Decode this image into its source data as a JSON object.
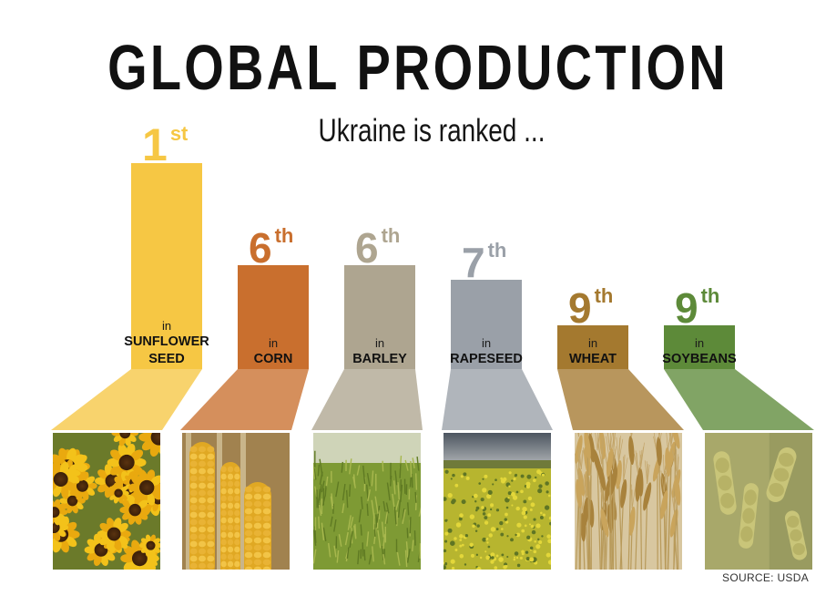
{
  "title": "GLOBAL PRODUCTION",
  "subtitle": "Ukraine is ranked ...",
  "source": "SOURCE: USDA",
  "chart_data": {
    "type": "bar",
    "categories": [
      "SUNFLOWER SEED",
      "CORN",
      "BARLEY",
      "RAPESEED",
      "WHEAT",
      "SOYBEANS"
    ],
    "values": [
      1,
      6,
      6,
      7,
      9,
      9
    ],
    "rank_labels": [
      {
        "num": "1",
        "suffix": "st"
      },
      {
        "num": "6",
        "suffix": "th"
      },
      {
        "num": "6",
        "suffix": "th"
      },
      {
        "num": "7",
        "suffix": "th"
      },
      {
        "num": "9",
        "suffix": "th"
      },
      {
        "num": "9",
        "suffix": "th"
      }
    ],
    "in_label": "in",
    "crop_label_lines": [
      [
        "SUNFLOWER",
        "SEED"
      ],
      [
        "CORN"
      ],
      [
        "BARLEY"
      ],
      [
        "RAPESEED"
      ],
      [
        "WHEAT"
      ],
      [
        "SOYBEANS"
      ]
    ],
    "colors": [
      "#f6c744",
      "#c96f2e",
      "#aea590",
      "#9aa0a8",
      "#a4792f",
      "#5d8a39"
    ],
    "image_labels": [
      "sunflower-field",
      "corn-cobs",
      "barley-field",
      "rapeseed-field",
      "wheat-ears",
      "soybean-pods"
    ]
  }
}
